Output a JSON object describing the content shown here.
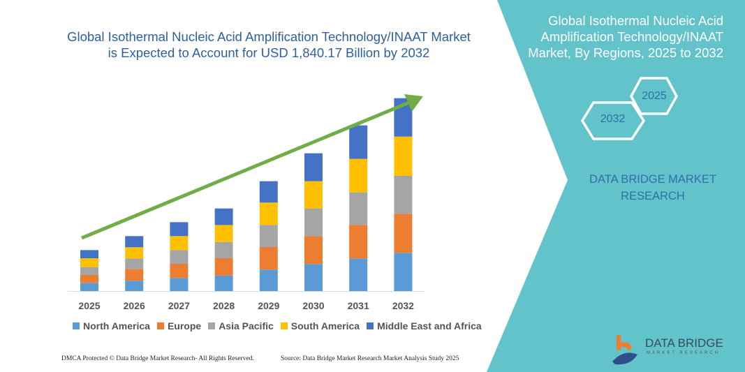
{
  "title": "Global Isothermal Nucleic Acid Amplification Technology/INAAT Market is Expected to Account for USD 1,840.17 Billion by 2032",
  "side_panel": {
    "title": "Global Isothermal Nucleic Acid Amplification Technology/INAAT Market, By Regions, 2025 to 2032",
    "hex_start": "2025",
    "hex_end": "2032",
    "brand_line1": "DATA BRIDGE MARKET",
    "brand_line2": "RESEARCH",
    "logo_text": "DATA BRIDGE",
    "logo_subtext": "MARKET RESEARCH",
    "background_color": "#62c4ca"
  },
  "footer": {
    "left": "DMCA Protected © Data Bridge Market Research-  All Rights Reserved.",
    "right": "Source: Data Bridge Market Research  Market Analysis Study 2025"
  },
  "chart_data": {
    "type": "bar",
    "stacked": true,
    "categories": [
      "2025",
      "2026",
      "2027",
      "2028",
      "2029",
      "2030",
      "2031",
      "2032"
    ],
    "series": [
      {
        "name": "North America",
        "color": "#5b9bd5",
        "values": [
          11.7,
          14.7,
          18.7,
          22.3,
          30.7,
          38.7,
          46.7,
          54.7
        ]
      },
      {
        "name": "Europe",
        "color": "#ed7d31",
        "values": [
          11.3,
          16.7,
          20.3,
          24.7,
          32.3,
          40,
          48,
          56
        ]
      },
      {
        "name": "Asia Pacific",
        "color": "#a5a5a5",
        "values": [
          11.3,
          15.3,
          19.7,
          23.3,
          31.7,
          39.7,
          46.7,
          54.3
        ]
      },
      {
        "name": "South America",
        "color": "#ffc000",
        "values": [
          12.7,
          16,
          20,
          24.3,
          32,
          39,
          48,
          56.3
        ]
      },
      {
        "name": "Middle East and Africa",
        "color": "#4472c4",
        "values": [
          11.7,
          16,
          20,
          23.7,
          30.7,
          40,
          48,
          55
        ]
      }
    ],
    "ylim": [
      0,
      280
    ],
    "y_axis_shown": false,
    "grid": false,
    "legend": "bottom",
    "trend_arrow_color": "#70ad47"
  }
}
